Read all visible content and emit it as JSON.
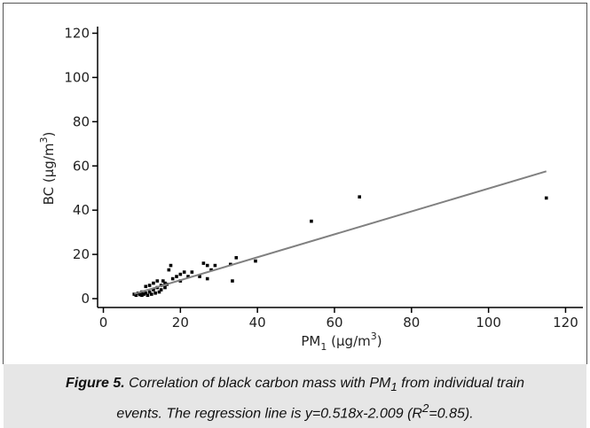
{
  "chart_data": {
    "type": "scatter",
    "xlabel": [
      "PM",
      "1",
      " (µg/m",
      "3",
      ")"
    ],
    "ylabel": [
      "BC (µg/m",
      "3",
      ")"
    ],
    "xlim": [
      -1.5,
      124.5
    ],
    "ylim": [
      -4,
      123
    ],
    "xticks": [
      0,
      20,
      40,
      60,
      80,
      100,
      120
    ],
    "yticks": [
      0,
      20,
      40,
      60,
      80,
      100,
      120
    ],
    "series": [
      {
        "color": "#000000",
        "x": [
          8,
          8.5,
          9,
          9.5,
          10,
          10,
          10.5,
          11,
          11,
          11.5,
          12,
          12,
          12.5,
          13,
          13,
          13.5,
          14,
          14,
          14.5,
          15,
          15,
          15.5,
          16,
          16,
          16.5,
          17,
          17.5,
          18,
          19,
          20,
          20,
          21,
          22,
          23,
          25,
          26,
          27,
          27,
          28,
          29,
          33,
          33.5,
          34.5,
          39.5,
          54,
          66.5,
          115
        ],
        "values": [
          2,
          1.5,
          2.5,
          1.8,
          3,
          1.5,
          2,
          5.5,
          2.5,
          1.5,
          3,
          6,
          2,
          4,
          7,
          2.5,
          5,
          8,
          3,
          6,
          4,
          8,
          5,
          7,
          6.5,
          13,
          15,
          9,
          10,
          11,
          8,
          12,
          10,
          12,
          10,
          16,
          15,
          9,
          13,
          15,
          15.5,
          8,
          18.5,
          17,
          35,
          46,
          45.5
        ]
      },
      {
        "type": "line",
        "color": "#808080",
        "x": [
          8,
          115
        ],
        "values": [
          2.135,
          57.561
        ]
      }
    ]
  },
  "caption": {
    "parts": [
      "Figure 5.",
      " Correlation of black carbon mass with PM",
      "1",
      " from individual train",
      "events. The regression line is y=0.518x-2.009 (R",
      "2",
      "=0.85)."
    ]
  }
}
